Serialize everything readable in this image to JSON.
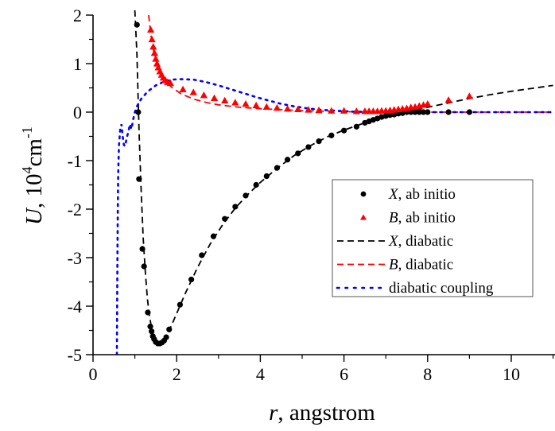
{
  "chart_data": {
    "type": "line",
    "title": "",
    "xlabel": "r, angstrom",
    "xlabel_italic": "r",
    "xlabel_rest": ", angstrom",
    "ylabel": "U, 10^4 cm^-1",
    "ylabel_italic": "U",
    "ylabel_rest": ", 10",
    "ylabel_sup1": "4",
    "ylabel_unit": "cm",
    "ylabel_sup2": "-1",
    "xlim": [
      0,
      11
    ],
    "ylim": [
      -5,
      2
    ],
    "x_ticks": [
      0,
      2,
      4,
      6,
      8,
      10
    ],
    "x_minor_ticks": [
      1,
      3,
      5,
      7,
      9,
      11
    ],
    "y_ticks": [
      -5,
      -4,
      -3,
      -2,
      -1,
      0,
      1,
      2
    ],
    "y_minor_ticks": [
      -4.5,
      -3.5,
      -2.5,
      -1.5,
      -0.5,
      0.5,
      1.5
    ],
    "grid": false,
    "legend_position": "center-right",
    "series": [
      {
        "name": "X, ab initio",
        "name_italic": "X",
        "name_rest": ", ab initio",
        "style": "marker-circle",
        "color": "#000000",
        "points": [
          [
            1.05,
            1.8
          ],
          [
            1.08,
            0.0
          ],
          [
            1.1,
            -1.38
          ],
          [
            1.18,
            -2.82
          ],
          [
            1.22,
            -3.18
          ],
          [
            1.31,
            -4.13
          ],
          [
            1.37,
            -4.42
          ],
          [
            1.4,
            -4.52
          ],
          [
            1.43,
            -4.62
          ],
          [
            1.46,
            -4.68
          ],
          [
            1.5,
            -4.74
          ],
          [
            1.55,
            -4.77
          ],
          [
            1.6,
            -4.77
          ],
          [
            1.65,
            -4.75
          ],
          [
            1.7,
            -4.71
          ],
          [
            1.75,
            -4.64
          ],
          [
            1.82,
            -4.48
          ],
          [
            2.08,
            -3.97
          ],
          [
            2.35,
            -3.45
          ],
          [
            2.6,
            -2.95
          ],
          [
            2.88,
            -2.56
          ],
          [
            3.15,
            -2.2
          ],
          [
            3.4,
            -1.95
          ],
          [
            3.65,
            -1.72
          ],
          [
            3.9,
            -1.5
          ],
          [
            4.15,
            -1.32
          ],
          [
            4.4,
            -1.15
          ],
          [
            4.65,
            -0.98
          ],
          [
            4.9,
            -0.85
          ],
          [
            5.15,
            -0.72
          ],
          [
            5.4,
            -0.6
          ],
          [
            5.7,
            -0.48
          ],
          [
            6.0,
            -0.38
          ],
          [
            6.3,
            -0.3
          ],
          [
            6.5,
            -0.22
          ],
          [
            6.6,
            -0.19
          ],
          [
            6.7,
            -0.16
          ],
          [
            6.8,
            -0.13
          ],
          [
            6.9,
            -0.1
          ],
          [
            7.0,
            -0.08
          ],
          [
            7.1,
            -0.06
          ],
          [
            7.2,
            -0.05
          ],
          [
            7.3,
            -0.03
          ],
          [
            7.4,
            -0.02
          ],
          [
            7.5,
            0.0
          ],
          [
            7.6,
            0.0
          ],
          [
            7.7,
            0.0
          ],
          [
            7.8,
            0.0
          ],
          [
            7.9,
            0.0
          ],
          [
            8.0,
            0.0
          ],
          [
            8.5,
            0.0
          ],
          [
            9.0,
            0.0
          ]
        ]
      },
      {
        "name": "B, ab initio",
        "name_italic": "B",
        "name_rest": ", ab initio",
        "style": "marker-triangle",
        "color": "#ff0000",
        "points": [
          [
            1.38,
            1.7
          ],
          [
            1.41,
            1.5
          ],
          [
            1.44,
            1.35
          ],
          [
            1.47,
            1.22
          ],
          [
            1.5,
            1.1
          ],
          [
            1.53,
            1.0
          ],
          [
            1.56,
            0.92
          ],
          [
            1.6,
            0.84
          ],
          [
            1.64,
            0.77
          ],
          [
            1.68,
            0.71
          ],
          [
            1.73,
            0.66
          ],
          [
            1.78,
            0.62
          ],
          [
            1.85,
            0.6
          ],
          [
            2.15,
            0.47
          ],
          [
            2.4,
            0.41
          ],
          [
            2.65,
            0.35
          ],
          [
            2.9,
            0.29
          ],
          [
            3.15,
            0.24
          ],
          [
            3.4,
            0.2
          ],
          [
            3.65,
            0.17
          ],
          [
            3.9,
            0.14
          ],
          [
            4.15,
            0.11
          ],
          [
            4.4,
            0.09
          ],
          [
            4.65,
            0.07
          ],
          [
            4.9,
            0.06
          ],
          [
            5.15,
            0.05
          ],
          [
            5.4,
            0.04
          ],
          [
            5.7,
            0.03
          ],
          [
            6.0,
            0.03
          ],
          [
            6.3,
            0.02
          ],
          [
            6.5,
            0.02
          ],
          [
            6.6,
            0.02
          ],
          [
            6.7,
            0.02
          ],
          [
            6.8,
            0.02
          ],
          [
            6.9,
            0.03
          ],
          [
            7.0,
            0.03
          ],
          [
            7.1,
            0.04
          ],
          [
            7.2,
            0.05
          ],
          [
            7.3,
            0.06
          ],
          [
            7.4,
            0.07
          ],
          [
            7.5,
            0.08
          ],
          [
            7.6,
            0.1
          ],
          [
            7.7,
            0.11
          ],
          [
            7.8,
            0.13
          ],
          [
            7.9,
            0.15
          ],
          [
            8.0,
            0.17
          ],
          [
            8.5,
            0.25
          ],
          [
            9.0,
            0.33
          ]
        ]
      },
      {
        "name": "X, diabatic",
        "name_italic": "X",
        "name_rest": ", diabatic",
        "style": "dashed",
        "color": "#000000",
        "points": [
          [
            1.0,
            2.1
          ],
          [
            1.05,
            1.2
          ],
          [
            1.1,
            -0.4
          ],
          [
            1.15,
            -1.6
          ],
          [
            1.2,
            -2.6
          ],
          [
            1.25,
            -3.3
          ],
          [
            1.3,
            -3.85
          ],
          [
            1.35,
            -4.2
          ],
          [
            1.4,
            -4.45
          ],
          [
            1.45,
            -4.62
          ],
          [
            1.5,
            -4.72
          ],
          [
            1.57,
            -4.77
          ],
          [
            1.65,
            -4.74
          ],
          [
            1.75,
            -4.62
          ],
          [
            1.85,
            -4.45
          ],
          [
            2.0,
            -4.15
          ],
          [
            2.2,
            -3.75
          ],
          [
            2.5,
            -3.2
          ],
          [
            2.8,
            -2.72
          ],
          [
            3.1,
            -2.32
          ],
          [
            3.4,
            -1.98
          ],
          [
            3.7,
            -1.7
          ],
          [
            4.0,
            -1.45
          ],
          [
            4.4,
            -1.16
          ],
          [
            4.8,
            -0.9
          ],
          [
            5.2,
            -0.69
          ],
          [
            5.6,
            -0.51
          ],
          [
            6.0,
            -0.37
          ],
          [
            6.5,
            -0.22
          ],
          [
            7.0,
            -0.1
          ],
          [
            7.5,
            0.0
          ],
          [
            8.0,
            0.1
          ],
          [
            8.5,
            0.19
          ],
          [
            9.0,
            0.28
          ],
          [
            9.5,
            0.36
          ],
          [
            10.0,
            0.43
          ],
          [
            10.5,
            0.49
          ],
          [
            11.0,
            0.55
          ]
        ]
      },
      {
        "name": "B, diabatic",
        "name_italic": "B",
        "name_rest": ", diabatic",
        "style": "dashed",
        "color": "#ff0000",
        "points": [
          [
            1.33,
            2.0
          ],
          [
            1.38,
            1.6
          ],
          [
            1.45,
            1.25
          ],
          [
            1.55,
            0.95
          ],
          [
            1.65,
            0.75
          ],
          [
            1.75,
            0.62
          ],
          [
            1.9,
            0.5
          ],
          [
            2.1,
            0.38
          ],
          [
            2.4,
            0.27
          ],
          [
            2.7,
            0.2
          ],
          [
            3.0,
            0.15
          ],
          [
            3.5,
            0.1
          ],
          [
            4.0,
            0.07
          ],
          [
            4.5,
            0.05
          ],
          [
            5.0,
            0.03
          ],
          [
            5.5,
            0.02
          ],
          [
            6.0,
            0.01
          ],
          [
            7.0,
            0.0
          ],
          [
            8.0,
            0.0
          ],
          [
            9.0,
            0.0
          ],
          [
            10.0,
            0.0
          ],
          [
            11.0,
            0.0
          ]
        ]
      },
      {
        "name": "diabatic coupling",
        "name_italic": "",
        "name_rest": "diabatic coupling",
        "style": "dotted",
        "color": "#0000ff",
        "points": [
          [
            0.57,
            -5.0
          ],
          [
            0.58,
            -3.5
          ],
          [
            0.59,
            -2.3
          ],
          [
            0.6,
            -1.3
          ],
          [
            0.62,
            -0.7
          ],
          [
            0.65,
            -0.35
          ],
          [
            0.68,
            -0.25
          ],
          [
            0.71,
            -0.5
          ],
          [
            0.74,
            -0.68
          ],
          [
            0.77,
            -0.7
          ],
          [
            0.8,
            -0.55
          ],
          [
            0.83,
            -0.45
          ],
          [
            0.86,
            -0.35
          ],
          [
            0.88,
            -0.25
          ],
          [
            0.92,
            -0.35
          ],
          [
            0.96,
            -0.15
          ],
          [
            1.0,
            0.0
          ],
          [
            1.05,
            0.12
          ],
          [
            1.15,
            0.27
          ],
          [
            1.3,
            0.42
          ],
          [
            1.5,
            0.55
          ],
          [
            1.7,
            0.63
          ],
          [
            1.9,
            0.67
          ],
          [
            2.1,
            0.68
          ],
          [
            2.4,
            0.67
          ],
          [
            2.7,
            0.62
          ],
          [
            3.0,
            0.55
          ],
          [
            3.3,
            0.47
          ],
          [
            3.6,
            0.39
          ],
          [
            3.9,
            0.31
          ],
          [
            4.2,
            0.24
          ],
          [
            4.5,
            0.17
          ],
          [
            4.8,
            0.12
          ],
          [
            5.1,
            0.08
          ],
          [
            5.4,
            0.05
          ],
          [
            5.8,
            0.03
          ],
          [
            6.2,
            0.01
          ],
          [
            7.0,
            0.0
          ],
          [
            8.0,
            0.0
          ],
          [
            9.0,
            0.0
          ],
          [
            10.0,
            0.0
          ],
          [
            11.0,
            0.0
          ]
        ]
      }
    ]
  }
}
